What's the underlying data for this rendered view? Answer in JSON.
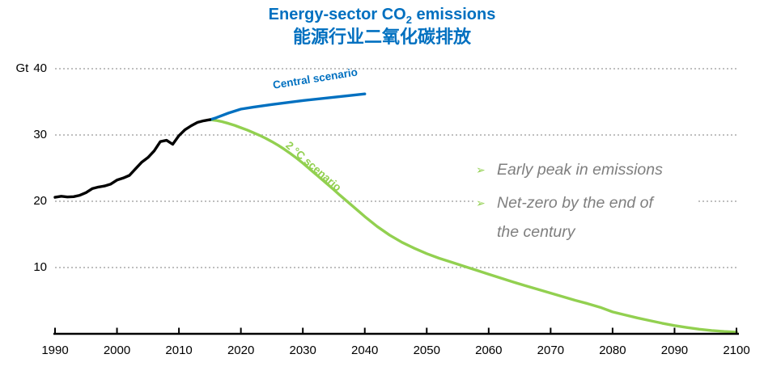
{
  "title": {
    "en_pre": "Energy-sector CO",
    "en_sub": "2",
    "en_post": " emissions",
    "zh": "能源行业二氧化碳排放"
  },
  "annotations": {
    "glyph": "➢",
    "items": [
      {
        "text": "Early peak in emissions"
      },
      {
        "text": "Net-zero by the end of\nthe century"
      }
    ]
  },
  "chart_data": {
    "type": "line",
    "title": "Energy-sector CO2 emissions 能源行业二氧化碳排放",
    "unit": "Gt",
    "xlabel": "",
    "ylabel": "Gt",
    "xlim": [
      1990,
      2100
    ],
    "ylim": [
      0,
      40
    ],
    "grid": "horizontal dotted gridlines at 10, 20, 30, 40",
    "legend_position": "labels on lines",
    "x_ticks": [
      "1990",
      "2000",
      "2010",
      "2020",
      "2030",
      "2040",
      "2050",
      "2060",
      "2070",
      "2080",
      "2090",
      "2100"
    ],
    "y_ticks": [
      "40",
      "30",
      "20",
      "10"
    ],
    "colors": {
      "historical": "#000000",
      "central": "#0070C0",
      "two_degree": "#92D050",
      "grid": "#BFBFBF",
      "annotation_text": "#7F7F7F",
      "title": "#0070C0"
    },
    "series": [
      {
        "key": "historical",
        "label": "",
        "color": "#000000",
        "points": [
          [
            1990,
            20.6
          ],
          [
            1991,
            20.75
          ],
          [
            1992,
            20.65
          ],
          [
            1993,
            20.7
          ],
          [
            1994,
            20.9
          ],
          [
            1995,
            21.3
          ],
          [
            1996,
            21.9
          ],
          [
            1997,
            22.15
          ],
          [
            1998,
            22.3
          ],
          [
            1999,
            22.6
          ],
          [
            2000,
            23.2
          ],
          [
            2001,
            23.5
          ],
          [
            2002,
            23.9
          ],
          [
            2003,
            24.9
          ],
          [
            2004,
            25.9
          ],
          [
            2005,
            26.6
          ],
          [
            2006,
            27.6
          ],
          [
            2007,
            29.0
          ],
          [
            2008,
            29.2
          ],
          [
            2009,
            28.6
          ],
          [
            2010,
            29.9
          ],
          [
            2011,
            30.8
          ],
          [
            2012,
            31.4
          ],
          [
            2013,
            31.9
          ],
          [
            2014,
            32.15
          ],
          [
            2015,
            32.3
          ]
        ]
      },
      {
        "key": "central",
        "label": "Central scenario",
        "color": "#0070C0",
        "points": [
          [
            2015,
            32.3
          ],
          [
            2016,
            32.6
          ],
          [
            2018,
            33.3
          ],
          [
            2020,
            33.9
          ],
          [
            2022,
            34.2
          ],
          [
            2025,
            34.6
          ],
          [
            2030,
            35.2
          ],
          [
            2035,
            35.7
          ],
          [
            2040,
            36.2
          ]
        ]
      },
      {
        "key": "two_degree",
        "label": "2 °C scenario",
        "color": "#92D050",
        "points": [
          [
            2015,
            32.3
          ],
          [
            2016,
            32.2
          ],
          [
            2017,
            32.0
          ],
          [
            2018,
            31.75
          ],
          [
            2019,
            31.45
          ],
          [
            2020,
            31.1
          ],
          [
            2021,
            30.75
          ],
          [
            2022,
            30.35
          ],
          [
            2023,
            29.95
          ],
          [
            2024,
            29.5
          ],
          [
            2025,
            29.0
          ],
          [
            2026,
            28.45
          ],
          [
            2027,
            27.85
          ],
          [
            2028,
            27.2
          ],
          [
            2029,
            26.5
          ],
          [
            2030,
            25.75
          ],
          [
            2031,
            24.95
          ],
          [
            2032,
            24.15
          ],
          [
            2033,
            23.35
          ],
          [
            2034,
            22.55
          ],
          [
            2035,
            21.75
          ],
          [
            2036,
            20.9
          ],
          [
            2037,
            20.1
          ],
          [
            2038,
            19.3
          ],
          [
            2039,
            18.5
          ],
          [
            2040,
            17.7
          ],
          [
            2042,
            16.2
          ],
          [
            2044,
            14.9
          ],
          [
            2046,
            13.8
          ],
          [
            2048,
            12.9
          ],
          [
            2050,
            12.1
          ],
          [
            2052,
            11.4
          ],
          [
            2054,
            10.8
          ],
          [
            2056,
            10.2
          ],
          [
            2058,
            9.6
          ],
          [
            2060,
            9.0
          ],
          [
            2062,
            8.4
          ],
          [
            2064,
            7.8
          ],
          [
            2066,
            7.25
          ],
          [
            2068,
            6.7
          ],
          [
            2070,
            6.15
          ],
          [
            2072,
            5.6
          ],
          [
            2074,
            5.05
          ],
          [
            2076,
            4.55
          ],
          [
            2078,
            4.0
          ],
          [
            2080,
            3.3
          ],
          [
            2082,
            2.85
          ],
          [
            2084,
            2.4
          ],
          [
            2086,
            2.0
          ],
          [
            2088,
            1.6
          ],
          [
            2090,
            1.25
          ],
          [
            2092,
            0.95
          ],
          [
            2094,
            0.7
          ],
          [
            2096,
            0.5
          ],
          [
            2098,
            0.35
          ],
          [
            2100,
            0.25
          ]
        ]
      }
    ]
  }
}
